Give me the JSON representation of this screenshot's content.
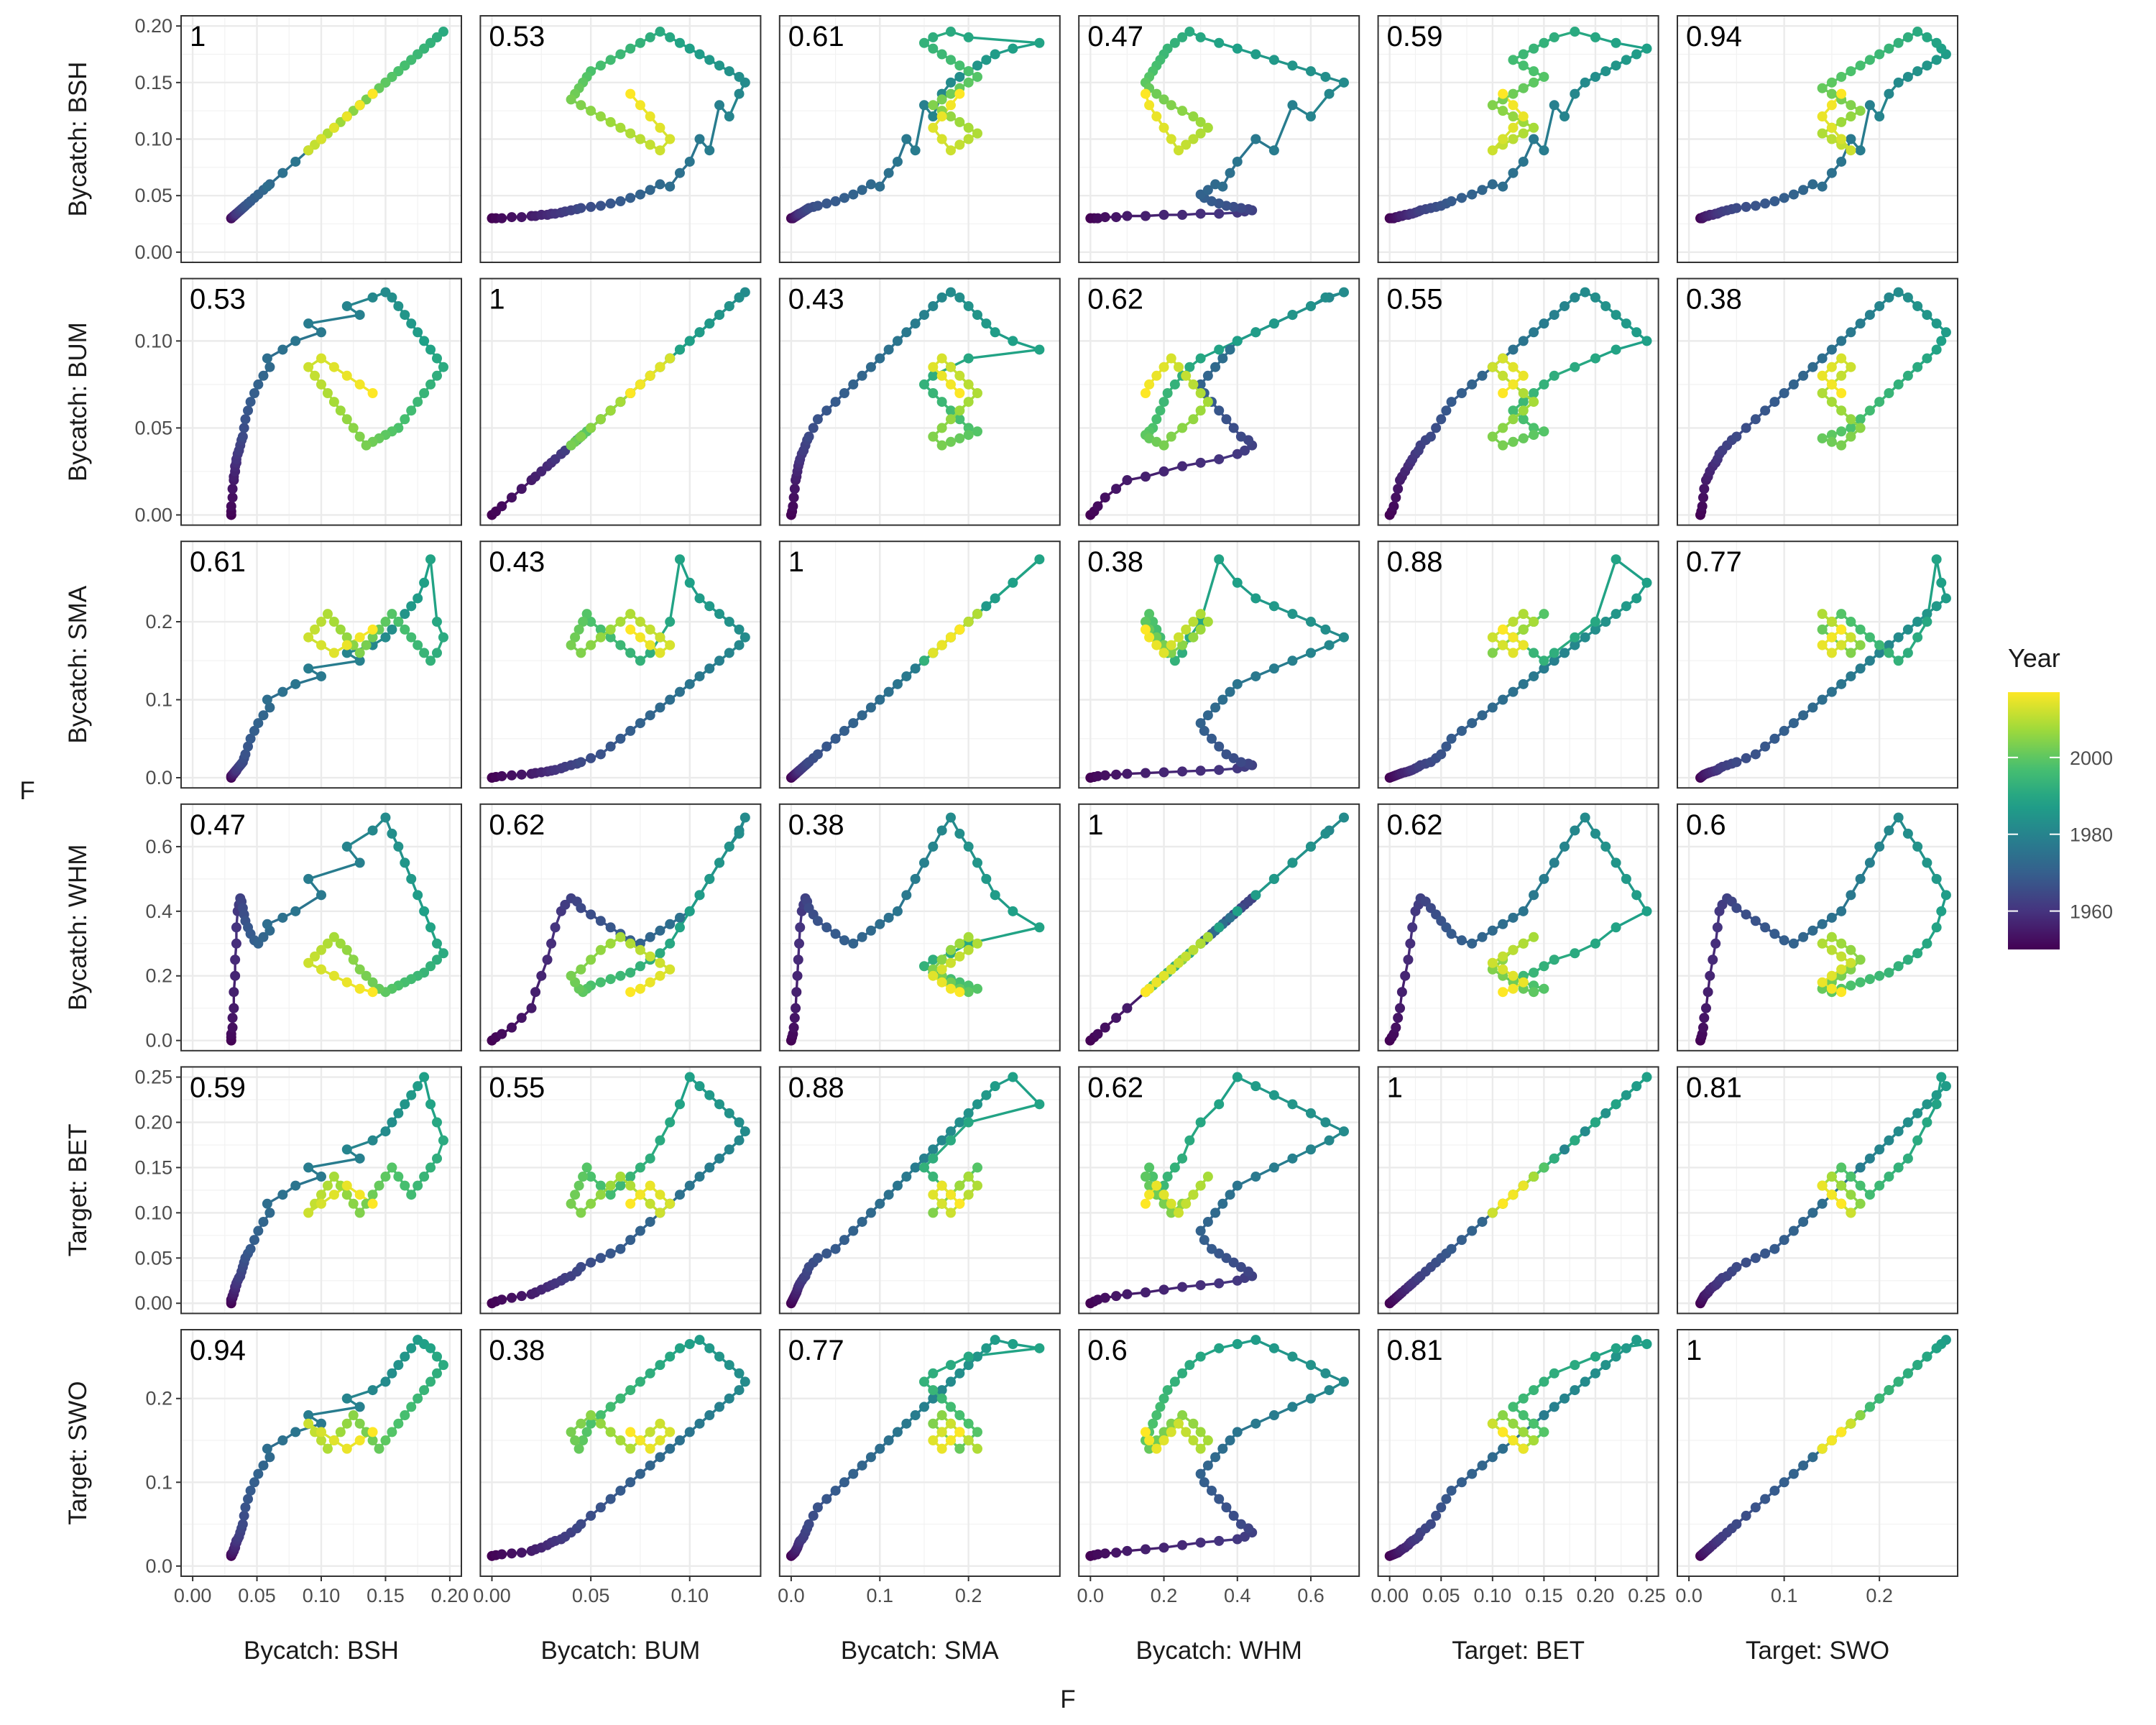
{
  "chart_data": {
    "type": "scatter",
    "variant": "pairs-matrix-connected-scatter",
    "xlabel": "F",
    "ylabel": "F",
    "variables": [
      "Bycatch: BSH",
      "Bycatch: BUM",
      "Bycatch: SMA",
      "Bycatch: WHM",
      "Target: BET",
      "Target: SWO"
    ],
    "axes": [
      {
        "name": "Bycatch: BSH",
        "lim": [
          0.0,
          0.2
        ],
        "ticks": [
          0.0,
          0.05,
          0.1,
          0.15,
          0.2
        ],
        "tick_labels": [
          "0.00",
          "0.05",
          "0.10",
          "0.15",
          "0.20"
        ]
      },
      {
        "name": "Bycatch: BUM",
        "lim": [
          0.0,
          0.13
        ],
        "ticks": [
          0.0,
          0.05,
          0.1
        ],
        "tick_labels": [
          "0.00",
          "0.05",
          "0.10"
        ]
      },
      {
        "name": "Bycatch: SMA",
        "lim": [
          0.0,
          0.29
        ],
        "ticks": [
          0.0,
          0.1,
          0.2
        ],
        "tick_labels": [
          "0.0",
          "0.1",
          "0.2"
        ]
      },
      {
        "name": "Bycatch: WHM",
        "lim": [
          0.0,
          0.7
        ],
        "ticks": [
          0.0,
          0.2,
          0.4,
          0.6
        ],
        "tick_labels": [
          "0.0",
          "0.2",
          "0.4",
          "0.6"
        ]
      },
      {
        "name": "Target: BET",
        "lim": [
          0.0,
          0.25
        ],
        "ticks": [
          0.0,
          0.05,
          0.1,
          0.15,
          0.2,
          0.25
        ],
        "tick_labels": [
          "0.00",
          "0.05",
          "0.10",
          "0.15",
          "0.20",
          "0.25"
        ]
      },
      {
        "name": "Target: SWO",
        "lim": [
          0.0,
          0.27
        ],
        "ticks": [
          0.0,
          0.1,
          0.2
        ],
        "tick_labels": [
          "0.0",
          "0.1",
          "0.2"
        ]
      }
    ],
    "correlations": [
      [
        "1",
        "0.53",
        "0.61",
        "0.47",
        "0.59",
        "0.94"
      ],
      [
        "0.53",
        "1",
        "0.43",
        "0.62",
        "0.55",
        "0.38"
      ],
      [
        "0.61",
        "0.43",
        "1",
        "0.38",
        "0.88",
        "0.77"
      ],
      [
        "0.47",
        "0.62",
        "0.38",
        "1",
        "0.62",
        "0.6"
      ],
      [
        "0.59",
        "0.55",
        "0.88",
        "0.62",
        "1",
        "0.81"
      ],
      [
        "0.94",
        "0.38",
        "0.77",
        "0.6",
        "0.81",
        "1"
      ]
    ],
    "years": [
      1950,
      1951,
      1952,
      1953,
      1954,
      1955,
      1956,
      1957,
      1958,
      1959,
      1960,
      1961,
      1962,
      1963,
      1964,
      1965,
      1966,
      1967,
      1968,
      1969,
      1970,
      1971,
      1972,
      1973,
      1974,
      1975,
      1976,
      1977,
      1978,
      1979,
      1980,
      1981,
      1982,
      1983,
      1984,
      1985,
      1986,
      1987,
      1988,
      1989,
      1990,
      1991,
      1992,
      1993,
      1994,
      1995,
      1996,
      1997,
      1998,
      1999,
      2000,
      2001,
      2002,
      2003,
      2004,
      2005,
      2006,
      2007,
      2008,
      2009,
      2010,
      2011,
      2012,
      2013,
      2014,
      2015,
      2016,
      2017
    ],
    "series": [
      {
        "name": "Bycatch: BSH",
        "values": [
          0.03,
          0.03,
          0.03,
          0.031,
          0.031,
          0.032,
          0.032,
          0.033,
          0.033,
          0.034,
          0.034,
          0.035,
          0.036,
          0.037,
          0.038,
          0.039,
          0.04,
          0.041,
          0.043,
          0.045,
          0.048,
          0.051,
          0.055,
          0.06,
          0.058,
          0.07,
          0.08,
          0.1,
          0.09,
          0.13,
          0.12,
          0.14,
          0.15,
          0.155,
          0.16,
          0.165,
          0.17,
          0.175,
          0.18,
          0.185,
          0.19,
          0.195,
          0.19,
          0.185,
          0.18,
          0.175,
          0.17,
          0.165,
          0.16,
          0.155,
          0.15,
          0.145,
          0.14,
          0.135,
          0.13,
          0.125,
          0.12,
          0.115,
          0.11,
          0.105,
          0.1,
          0.095,
          0.09,
          0.1,
          0.11,
          0.12,
          0.13,
          0.14
        ]
      },
      {
        "name": "Bycatch: BUM",
        "values": [
          0.0,
          0.002,
          0.005,
          0.01,
          0.015,
          0.02,
          0.022,
          0.025,
          0.028,
          0.03,
          0.032,
          0.035,
          0.037,
          0.04,
          0.043,
          0.045,
          0.05,
          0.055,
          0.06,
          0.065,
          0.07,
          0.075,
          0.08,
          0.085,
          0.09,
          0.095,
          0.1,
          0.105,
          0.11,
          0.115,
          0.12,
          0.125,
          0.128,
          0.125,
          0.12,
          0.115,
          0.11,
          0.105,
          0.1,
          0.095,
          0.09,
          0.085,
          0.08,
          0.075,
          0.07,
          0.065,
          0.06,
          0.055,
          0.05,
          0.048,
          0.046,
          0.044,
          0.042,
          0.04,
          0.045,
          0.05,
          0.055,
          0.06,
          0.065,
          0.07,
          0.075,
          0.08,
          0.085,
          0.09,
          0.085,
          0.08,
          0.075,
          0.07
        ]
      },
      {
        "name": "Bycatch: SMA",
        "values": [
          0.0,
          0.001,
          0.002,
          0.003,
          0.004,
          0.005,
          0.006,
          0.007,
          0.008,
          0.009,
          0.01,
          0.012,
          0.014,
          0.016,
          0.018,
          0.02,
          0.025,
          0.03,
          0.04,
          0.05,
          0.06,
          0.07,
          0.08,
          0.09,
          0.1,
          0.11,
          0.12,
          0.13,
          0.14,
          0.15,
          0.16,
          0.17,
          0.18,
          0.19,
          0.2,
          0.21,
          0.22,
          0.23,
          0.25,
          0.28,
          0.2,
          0.18,
          0.16,
          0.15,
          0.16,
          0.17,
          0.18,
          0.19,
          0.2,
          0.21,
          0.2,
          0.19,
          0.18,
          0.17,
          0.16,
          0.17,
          0.18,
          0.19,
          0.2,
          0.21,
          0.2,
          0.19,
          0.18,
          0.17,
          0.16,
          0.17,
          0.18,
          0.19
        ]
      },
      {
        "name": "Bycatch: WHM",
        "values": [
          0.0,
          0.01,
          0.02,
          0.04,
          0.07,
          0.1,
          0.15,
          0.2,
          0.25,
          0.3,
          0.35,
          0.4,
          0.42,
          0.44,
          0.43,
          0.41,
          0.39,
          0.37,
          0.35,
          0.33,
          0.31,
          0.3,
          0.32,
          0.34,
          0.36,
          0.38,
          0.4,
          0.45,
          0.5,
          0.55,
          0.6,
          0.65,
          0.69,
          0.64,
          0.6,
          0.55,
          0.5,
          0.45,
          0.4,
          0.35,
          0.3,
          0.27,
          0.25,
          0.23,
          0.21,
          0.2,
          0.19,
          0.18,
          0.17,
          0.16,
          0.15,
          0.16,
          0.18,
          0.2,
          0.22,
          0.25,
          0.28,
          0.3,
          0.32,
          0.3,
          0.28,
          0.26,
          0.24,
          0.22,
          0.2,
          0.18,
          0.16,
          0.15
        ]
      },
      {
        "name": "Target: BET",
        "values": [
          0.0,
          0.002,
          0.004,
          0.006,
          0.008,
          0.01,
          0.012,
          0.015,
          0.018,
          0.02,
          0.022,
          0.025,
          0.028,
          0.03,
          0.035,
          0.04,
          0.045,
          0.05,
          0.055,
          0.06,
          0.07,
          0.08,
          0.09,
          0.1,
          0.11,
          0.12,
          0.13,
          0.14,
          0.15,
          0.16,
          0.17,
          0.18,
          0.19,
          0.2,
          0.21,
          0.22,
          0.23,
          0.24,
          0.25,
          0.22,
          0.2,
          0.18,
          0.16,
          0.15,
          0.14,
          0.13,
          0.12,
          0.13,
          0.14,
          0.15,
          0.14,
          0.13,
          0.12,
          0.11,
          0.1,
          0.11,
          0.12,
          0.13,
          0.14,
          0.13,
          0.12,
          0.11,
          0.1,
          0.11,
          0.12,
          0.13,
          0.12,
          0.11
        ]
      },
      {
        "name": "Target: SWO",
        "values": [
          0.012,
          0.013,
          0.014,
          0.015,
          0.016,
          0.018,
          0.02,
          0.022,
          0.025,
          0.028,
          0.03,
          0.032,
          0.035,
          0.04,
          0.045,
          0.05,
          0.06,
          0.07,
          0.08,
          0.09,
          0.1,
          0.11,
          0.12,
          0.13,
          0.14,
          0.15,
          0.16,
          0.17,
          0.18,
          0.19,
          0.2,
          0.21,
          0.22,
          0.23,
          0.24,
          0.25,
          0.26,
          0.27,
          0.265,
          0.26,
          0.25,
          0.24,
          0.23,
          0.22,
          0.21,
          0.2,
          0.19,
          0.18,
          0.17,
          0.16,
          0.15,
          0.14,
          0.15,
          0.16,
          0.17,
          0.18,
          0.17,
          0.16,
          0.15,
          0.14,
          0.15,
          0.16,
          0.17,
          0.16,
          0.15,
          0.14,
          0.15,
          0.16
        ]
      }
    ],
    "color_scale": {
      "title": "Year",
      "range": [
        1950,
        2017
      ],
      "ticks": [
        1960,
        1980,
        2000
      ],
      "tick_labels": [
        "1960",
        "1980",
        "2000"
      ],
      "palette": [
        "#440154",
        "#46327e",
        "#365c8d",
        "#277f8e",
        "#1fa187",
        "#4ac16d",
        "#a0da39",
        "#fde725"
      ]
    },
    "legend_position": "right",
    "grid": true
  }
}
